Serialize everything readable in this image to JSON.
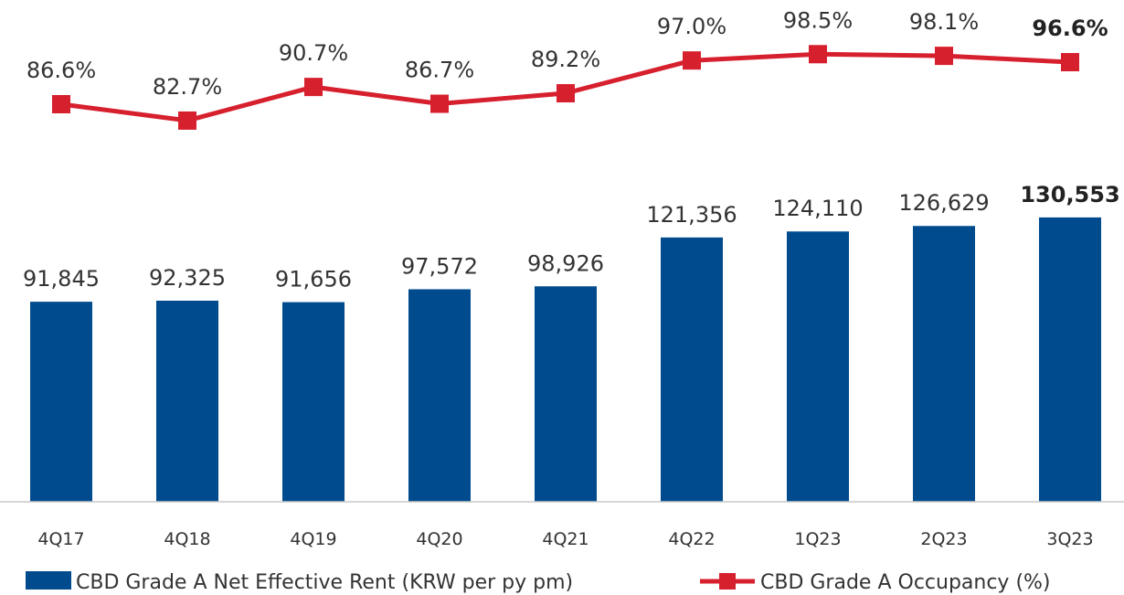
{
  "chart_data": {
    "type": "bar",
    "categories": [
      "4Q17",
      "4Q18",
      "4Q19",
      "4Q20",
      "4Q21",
      "4Q22",
      "1Q23",
      "2Q23",
      "3Q23"
    ],
    "series": [
      {
        "name": "CBD Grade A Net Effective Rent (KRW per py pm)",
        "type": "bar",
        "color": "#004b8d",
        "values": [
          91845,
          92325,
          91656,
          97572,
          98926,
          121356,
          124110,
          126629,
          130553
        ],
        "labels": [
          "91,845",
          "92,325",
          "91,656",
          "97,572",
          "98,926",
          "121,356",
          "124,110",
          "126,629",
          "130,553"
        ]
      },
      {
        "name": "CBD Grade A Occupancy (%)",
        "type": "line",
        "color": "#d7202e",
        "values": [
          86.6,
          82.7,
          90.7,
          86.7,
          89.2,
          97.0,
          98.5,
          98.1,
          96.6
        ],
        "labels": [
          "86.6%",
          "82.7%",
          "90.7%",
          "86.7%",
          "89.2%",
          "97.0%",
          "98.5%",
          "98.1%",
          "96.6%"
        ]
      }
    ],
    "highlighted_category": "3Q23",
    "legend_position": "bottom",
    "grid": false,
    "title": "",
    "xlabel": "",
    "ylabel": ""
  }
}
